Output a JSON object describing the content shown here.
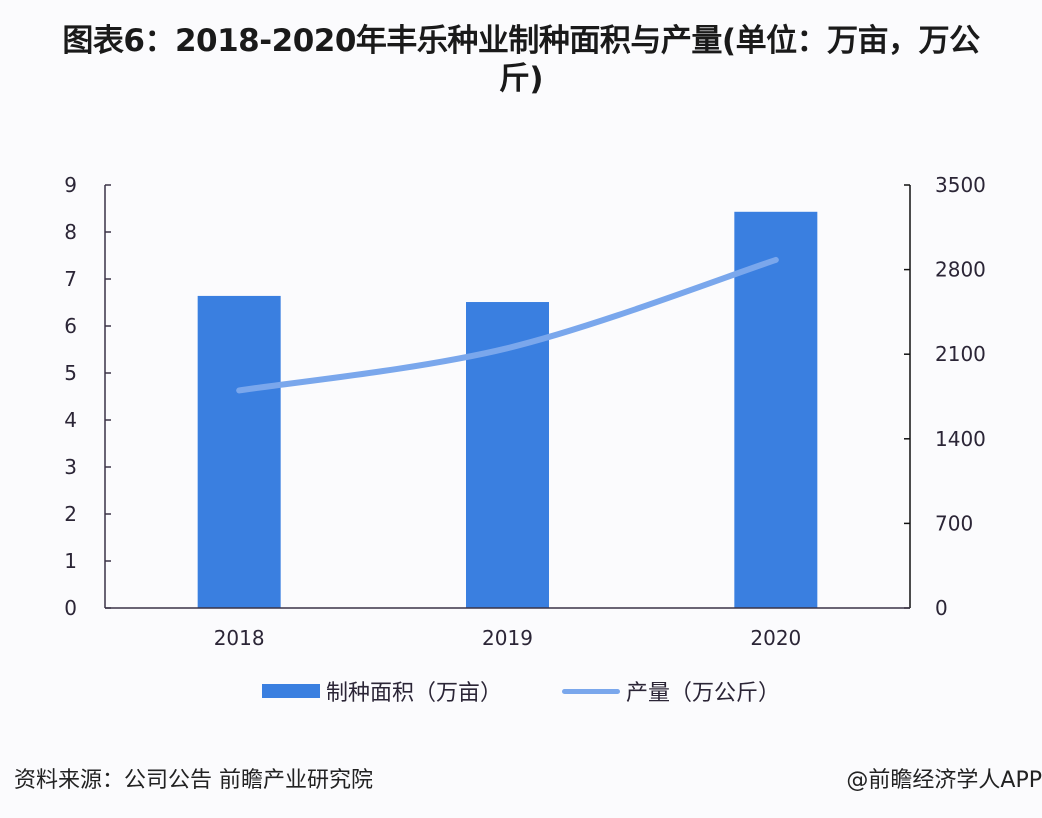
{
  "title": {
    "line1": "图表6：2018-2020年丰乐种业制种面积与产量(单位：万亩，万公",
    "line2": "斤)"
  },
  "chart_data": {
    "type": "bar+line",
    "title": "图表6：2018-2020年丰乐种业制种面积与产量(单位：万亩，万公斤)",
    "categories": [
      "2018",
      "2019",
      "2020"
    ],
    "series": [
      {
        "name": "制种面积（万亩）",
        "type": "bar",
        "axis": "left",
        "color": "#3a7fe0",
        "values": [
          6.64,
          6.51,
          8.43
        ]
      },
      {
        "name": "产量（万公斤）",
        "type": "line",
        "axis": "right",
        "color": "#7aa7ec",
        "values": [
          1800,
          2150,
          2880
        ]
      }
    ],
    "left_axis": {
      "ylim": [
        0,
        9
      ],
      "ticks": [
        "0",
        "1",
        "2",
        "3",
        "4",
        "5",
        "6",
        "7",
        "8",
        "9"
      ]
    },
    "right_axis": {
      "ylim": [
        0,
        3500
      ],
      "ticks": [
        "0",
        "700",
        "1400",
        "2100",
        "2800",
        "3500"
      ]
    },
    "legend_position": "bottom",
    "grid": false
  },
  "legend": {
    "bar_label": "制种面积（万亩）",
    "line_label": "产量（万公斤）"
  },
  "footer": {
    "source": "资料来源：公司公告 前瞻产业研究院",
    "credit": "@前瞻经济学人APP"
  },
  "colors": {
    "bar": "#3a7fe0",
    "line": "#7aa7ec",
    "axis": "#3b3346"
  }
}
